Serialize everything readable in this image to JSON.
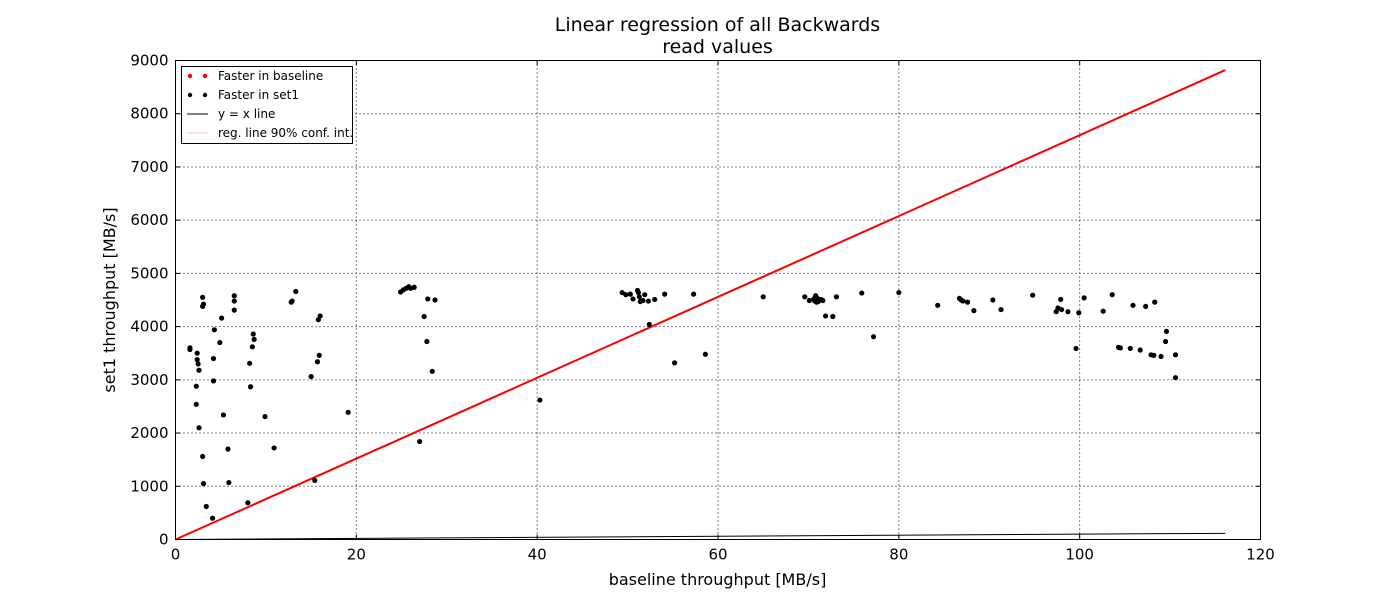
{
  "chart_data": {
    "type": "scatter",
    "title": [
      "Linear regression of all Backwards",
      "read values"
    ],
    "xlabel": "baseline throughput [MB/s]",
    "ylabel": "set1 throughput [MB/s]",
    "xlim": [
      0,
      120
    ],
    "ylim": [
      0,
      9000
    ],
    "xticks": [
      "0",
      "20",
      "40",
      "60",
      "80",
      "100",
      "120"
    ],
    "yticks": [
      "0",
      "1000",
      "2000",
      "3000",
      "4000",
      "5000",
      "6000",
      "7000",
      "8000",
      "9000"
    ],
    "grid": true,
    "legend_position": "top-left",
    "legend": [
      {
        "label": "Faster in baseline",
        "kind": "marker",
        "color": "#ff0000"
      },
      {
        "label": "Faster in set1",
        "kind": "marker",
        "color": "#000000"
      },
      {
        "label": "y = x line",
        "kind": "line",
        "color": "#000000"
      },
      {
        "label": "reg. line 90% conf. int.",
        "kind": "line",
        "color": "#ffb6c1"
      }
    ],
    "series": [
      {
        "name": "Faster in set1",
        "color": "#000000",
        "points": [
          [
            1.6,
            3600
          ],
          [
            1.6,
            3570
          ],
          [
            2.4,
            3500
          ],
          [
            2.4,
            3380
          ],
          [
            2.5,
            3300
          ],
          [
            2.6,
            3180
          ],
          [
            2.3,
            2880
          ],
          [
            2.3,
            2540
          ],
          [
            2.6,
            2100
          ],
          [
            3.0,
            4550
          ],
          [
            3.1,
            4420
          ],
          [
            3.0,
            4380
          ],
          [
            3.0,
            1560
          ],
          [
            3.1,
            1050
          ],
          [
            3.4,
            620
          ],
          [
            4.1,
            400
          ],
          [
            4.3,
            3940
          ],
          [
            4.2,
            3400
          ],
          [
            4.2,
            2980
          ],
          [
            4.9,
            3700
          ],
          [
            5.1,
            4160
          ],
          [
            5.3,
            2340
          ],
          [
            5.8,
            1700
          ],
          [
            5.9,
            1070
          ],
          [
            6.5,
            4580
          ],
          [
            6.5,
            4480
          ],
          [
            6.5,
            4310
          ],
          [
            8.0,
            690
          ],
          [
            8.2,
            3310
          ],
          [
            8.3,
            2870
          ],
          [
            8.6,
            3860
          ],
          [
            8.5,
            3620
          ],
          [
            8.7,
            3760
          ],
          [
            9.9,
            2310
          ],
          [
            10.9,
            1720
          ],
          [
            12.8,
            4460
          ],
          [
            12.9,
            4480
          ],
          [
            13.3,
            4660
          ],
          [
            15.0,
            3060
          ],
          [
            15.4,
            1110
          ],
          [
            15.7,
            3340
          ],
          [
            15.9,
            3460
          ],
          [
            15.8,
            4130
          ],
          [
            16.0,
            4200
          ],
          [
            19.1,
            2390
          ],
          [
            24.9,
            4650
          ],
          [
            25.2,
            4690
          ],
          [
            25.5,
            4720
          ],
          [
            25.8,
            4750
          ],
          [
            26.0,
            4720
          ],
          [
            26.4,
            4740
          ],
          [
            27.0,
            1840
          ],
          [
            27.5,
            4190
          ],
          [
            27.8,
            3720
          ],
          [
            27.9,
            4520
          ],
          [
            28.4,
            3160
          ],
          [
            28.7,
            4500
          ],
          [
            40.3,
            2620
          ],
          [
            49.4,
            4640
          ],
          [
            49.8,
            4600
          ],
          [
            50.3,
            4610
          ],
          [
            50.6,
            4520
          ],
          [
            51.1,
            4680
          ],
          [
            51.2,
            4640
          ],
          [
            51.3,
            4560
          ],
          [
            51.4,
            4470
          ],
          [
            51.7,
            4490
          ],
          [
            51.9,
            4600
          ],
          [
            52.3,
            4480
          ],
          [
            52.4,
            4040
          ],
          [
            53.0,
            4510
          ],
          [
            54.1,
            4610
          ],
          [
            55.2,
            3320
          ],
          [
            57.3,
            4610
          ],
          [
            58.6,
            3480
          ],
          [
            65.0,
            4560
          ],
          [
            69.6,
            4560
          ],
          [
            70.1,
            4490
          ],
          [
            70.6,
            4520
          ],
          [
            70.7,
            4480
          ],
          [
            70.8,
            4580
          ],
          [
            70.9,
            4460
          ],
          [
            71.0,
            4530
          ],
          [
            71.1,
            4470
          ],
          [
            71.4,
            4510
          ],
          [
            71.6,
            4490
          ],
          [
            71.9,
            4200
          ],
          [
            72.7,
            4190
          ],
          [
            73.1,
            4560
          ],
          [
            75.9,
            4630
          ],
          [
            77.2,
            3810
          ],
          [
            80.0,
            4640
          ],
          [
            84.3,
            4400
          ],
          [
            86.7,
            4530
          ],
          [
            86.9,
            4500
          ],
          [
            87.1,
            4480
          ],
          [
            87.6,
            4460
          ],
          [
            88.3,
            4300
          ],
          [
            90.4,
            4500
          ],
          [
            91.3,
            4320
          ],
          [
            94.8,
            4590
          ],
          [
            97.4,
            4280
          ],
          [
            97.6,
            4350
          ],
          [
            97.9,
            4510
          ],
          [
            98.0,
            4320
          ],
          [
            98.7,
            4280
          ],
          [
            99.6,
            3590
          ],
          [
            99.9,
            4260
          ],
          [
            100.5,
            4540
          ],
          [
            102.6,
            4290
          ],
          [
            103.6,
            4600
          ],
          [
            104.3,
            3610
          ],
          [
            104.5,
            3600
          ],
          [
            105.6,
            3590
          ],
          [
            105.9,
            4400
          ],
          [
            106.7,
            3560
          ],
          [
            107.3,
            4380
          ],
          [
            107.9,
            3470
          ],
          [
            108.2,
            3460
          ],
          [
            108.3,
            4460
          ],
          [
            109.0,
            3440
          ],
          [
            109.5,
            3720
          ],
          [
            109.6,
            3910
          ],
          [
            110.6,
            3470
          ],
          [
            110.6,
            3040
          ]
        ]
      },
      {
        "name": "Faster in baseline",
        "color": "#ff0000",
        "points": []
      }
    ],
    "lines": [
      {
        "name": "regression line",
        "color": "#ff0000",
        "x": [
          0,
          116.1
        ],
        "y": [
          0,
          8820
        ]
      },
      {
        "name": "y = x line",
        "color": "#000000",
        "x": [
          0,
          116.1
        ],
        "y": [
          0,
          116.1
        ]
      }
    ]
  }
}
